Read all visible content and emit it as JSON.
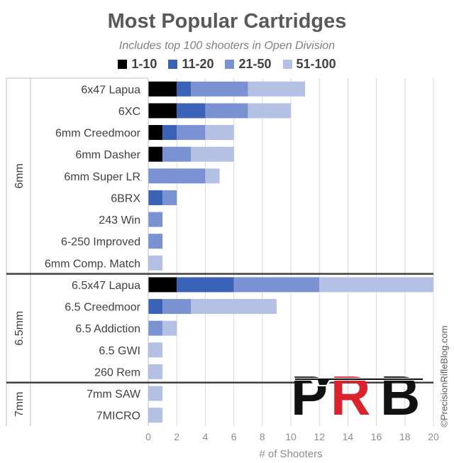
{
  "title": "Most Popular Cartridges",
  "subtitle": "Includes top 100 shooters in Open Division",
  "watermark": "©PrecisionRifleBlog.com",
  "logo_text": "PRB",
  "chart_data": {
    "type": "bar",
    "orientation": "horizontal",
    "stacked": true,
    "title": "Most Popular Cartridges",
    "subtitle": "Includes top 100 shooters in Open Division",
    "xlabel": "# of Shooters",
    "xlim": [
      0,
      20
    ],
    "xticks": [
      0,
      2,
      4,
      6,
      8,
      10,
      12,
      14,
      16,
      18,
      20
    ],
    "grid": "vertical",
    "legend_position": "top",
    "groups": [
      {
        "name": "6mm",
        "categories": [
          "6x47 Lapua",
          "6XC",
          "6mm Creedmoor",
          "6mm Dasher",
          "6mm Super LR",
          "6BRX",
          "243 Win",
          "6-250 Improved",
          "6mm Comp. Match"
        ]
      },
      {
        "name": "6.5mm",
        "categories": [
          "6.5x47 Lapua",
          "6.5 Creedmoor",
          "6.5 Addiction",
          "6.5 GWI",
          "260 Rem"
        ]
      },
      {
        "name": "7mm",
        "categories": [
          "7mm SAW",
          "7MICRO"
        ]
      }
    ],
    "categories": [
      "6x47 Lapua",
      "6XC",
      "6mm Creedmoor",
      "6mm Dasher",
      "6mm Super LR",
      "6BRX",
      "243 Win",
      "6-250 Improved",
      "6mm Comp. Match",
      "6.5x47 Lapua",
      "6.5 Creedmoor",
      "6.5 Addiction",
      "6.5 GWI",
      "260 Rem",
      "7mm SAW",
      "7MICRO"
    ],
    "series": [
      {
        "name": "1-10",
        "color": "#000000",
        "values": [
          2,
          2,
          1,
          1,
          0,
          0,
          0,
          0,
          0,
          2,
          0,
          0,
          0,
          0,
          0,
          0
        ]
      },
      {
        "name": "11-20",
        "color": "#3a62b6",
        "values": [
          1,
          2,
          1,
          0,
          0,
          1,
          0,
          0,
          0,
          4,
          1,
          0,
          0,
          0,
          0,
          0
        ]
      },
      {
        "name": "21-50",
        "color": "#7b92d2",
        "values": [
          4,
          3,
          2,
          2,
          4,
          1,
          1,
          1,
          0,
          6,
          2,
          1,
          0,
          0,
          0,
          0
        ]
      },
      {
        "name": "51-100",
        "color": "#b4c0e4",
        "values": [
          4,
          3,
          2,
          3,
          1,
          0,
          0,
          0,
          1,
          8,
          6,
          1,
          1,
          1,
          1,
          1
        ]
      }
    ]
  }
}
